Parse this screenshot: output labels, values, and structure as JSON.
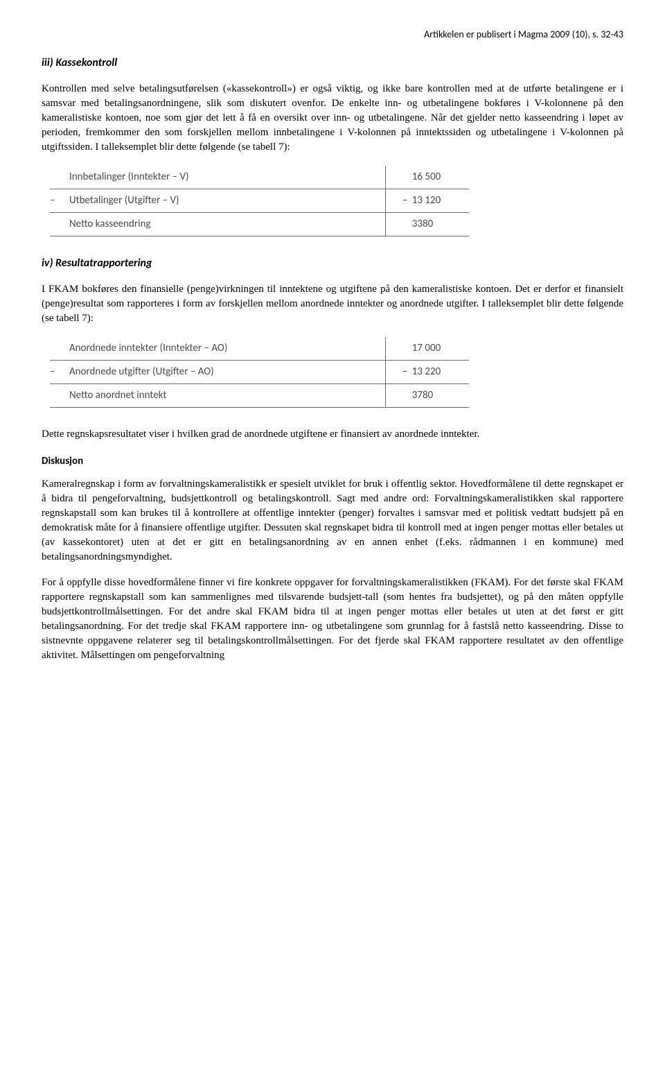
{
  "header": {
    "publication": "Artikkelen er publisert i Magma 2009 (10), s. 32-43"
  },
  "section1": {
    "heading": "iii) Kassekontroll",
    "paragraph": "Kontrollen med selve betalingsutførelsen («kassekontroll») er også viktig, og ikke bare kontrollen med at de utførte betalingene er i samsvar med betalingsanordningene, slik som diskutert ovenfor. De enkelte inn- og utbetalingene bokføres i V-kolonnene på den kameralistiske kontoen, noe som gjør det lett å få en oversikt over inn- og utbetalingene. Når det gjelder netto kasseendring i løpet av perioden, fremkommer den som forskjellen mellom innbetalingene i V-kolonnen på inntektssiden og utbetalingene i V-kolonnen på utgiftssiden. I talleksemplet blir dette følgende (se tabell 7):"
  },
  "table1": {
    "rows": [
      {
        "sign": "",
        "label": "Innbetalinger (Inntekter – V)",
        "neg": "",
        "val": "16 500"
      },
      {
        "sign": "–",
        "label": "Utbetalinger (Utgifter – V)",
        "neg": "– ",
        "val": "13 120"
      },
      {
        "sign": "",
        "label": "Netto kasseendring",
        "neg": "",
        "val": "3380"
      }
    ]
  },
  "section2": {
    "heading": "iv) Resultatrapportering",
    "paragraph": "I FKAM bokføres den finansielle (penge)virkningen til inntektene og utgiftene på den kameralistiske kontoen. Det er derfor et finansielt (penge)resultat som rapporteres i form av forskjellen mellom anordnede inntekter og anordnede utgifter. I talleksemplet blir dette følgende (se tabell 7):"
  },
  "table2": {
    "rows": [
      {
        "sign": "",
        "label": "Anordnede inntekter (Inntekter – AO)",
        "neg": "",
        "val": "17 000"
      },
      {
        "sign": "–",
        "label": "Anordnede utgifter (Utgifter – AO)",
        "neg": "– ",
        "val": "13 220"
      },
      {
        "sign": "",
        "label": "Netto anordnet inntekt",
        "neg": "",
        "val": "3780"
      }
    ]
  },
  "section3": {
    "paragraph": "Dette regnskapsresultatet viser i hvilken grad de anordnede utgiftene er finansiert av anordnede inntekter."
  },
  "discussion": {
    "heading": "Diskusjon",
    "p1": "Kameralregnskap i form av forvaltningskameralistikk er spesielt utviklet for bruk i offentlig sektor. Hovedformålene til dette regnskapet er å bidra til pengeforvaltning, budsjettkontroll og betalingskontroll. Sagt med andre ord: Forvaltningskameralistikken skal rapportere regnskapstall som kan brukes til å kontrollere at offentlige inntekter (penger) forvaltes i samsvar med et politisk vedtatt budsjett på en demokratisk måte for å finansiere offentlige utgifter. Dessuten skal regnskapet bidra til kontroll med at ingen penger mottas eller betales ut (av kassekontoret) uten at det er gitt en betalingsanordning av en annen enhet (f.eks. rådmannen i en kommune) med betalingsanordningsmyndighet.",
    "p2": "For å oppfylle disse hovedformålene finner vi fire konkrete oppgaver for forvaltningskameralistikken (FKAM). For det første skal FKAM rapportere regnskapstall som kan sammenlignes med tilsvarende budsjett-tall (som hentes fra budsjettet), og på den måten oppfylle budsjettkontrollmålsettingen. For det andre skal FKAM bidra til at ingen penger mottas eller betales ut uten at det først er gitt betalingsanordning. For det tredje skal FKAM rapportere inn- og utbetalingene som grunnlag for å fastslå netto kasseendring. Disse to sistnevnte oppgavene relaterer seg til betalingskontrollmålsettingen. For det fjerde skal FKAM rapportere resultatet av den offentlige aktivitet. Målsettingen om pengeforvaltning"
  }
}
